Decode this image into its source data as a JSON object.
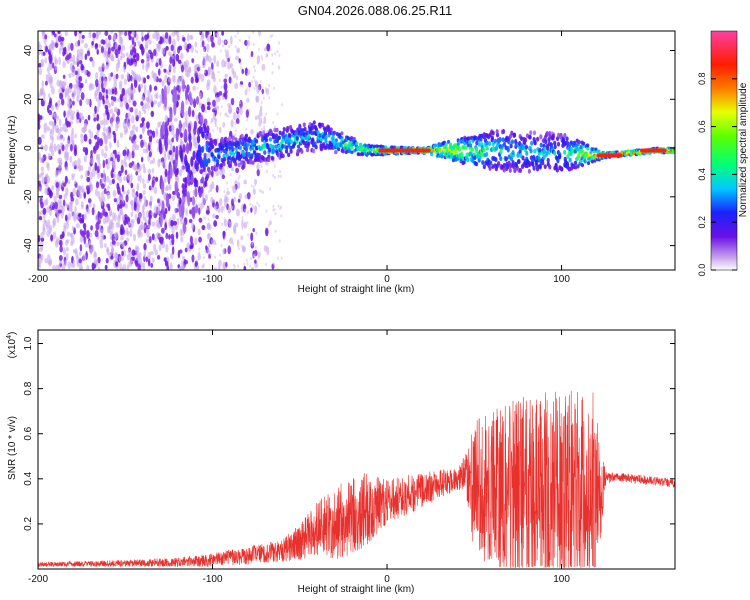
{
  "title": "GN04.2026.088.06.25.R11",
  "colors": {
    "snr_line": "#e8302c",
    "frame": "#000000",
    "spectro_low": "#c9a6ec",
    "spectro_mid": "#6a11e6",
    "spectro_high": "#00e8ff",
    "spectro_peak": "#ff1d00"
  },
  "chart_data": [
    {
      "type": "heatmap",
      "title": "GN04.2026.088.06.25.R11",
      "xlabel": "Height of straight line (km)",
      "ylabel": "Frequency (Hz)",
      "xlim": [
        -200,
        165
      ],
      "ylim": [
        -50,
        48
      ],
      "x_ticks": [
        -200,
        -100,
        0,
        100
      ],
      "y_ticks": [
        -40,
        -20,
        0,
        20,
        40
      ],
      "colorbar": {
        "label": "Normalized spectral amplitude",
        "range": [
          0,
          1
        ],
        "ticks": [
          "0.0",
          "0.2",
          "0.4",
          "0.6",
          "0.8"
        ],
        "colormap": "rainbow (purple-blue-cyan-green-yellow-red-magenta)"
      },
      "description_points": [
        {
          "x": -200,
          "y_center": -5,
          "spread": 48,
          "amplitude": 0.15
        },
        {
          "x": -120,
          "y_center": -2,
          "spread": 48,
          "amplitude": 0.12
        },
        {
          "x": -100,
          "y_center": -3,
          "spread": 6,
          "amplitude": 0.35
        },
        {
          "x": -60,
          "y_center": 2,
          "spread": 6,
          "amplitude": 0.4
        },
        {
          "x": -40,
          "y_center": 5,
          "spread": 6,
          "amplitude": 0.35
        },
        {
          "x": -10,
          "y_center": -1,
          "spread": 2,
          "amplitude": 0.6
        },
        {
          "x": 20,
          "y_center": -1,
          "spread": 1,
          "amplitude": 0.9
        },
        {
          "x": 60,
          "y_center": -1,
          "spread": 8,
          "amplitude": 0.4
        },
        {
          "x": 100,
          "y_center": -2,
          "spread": 8,
          "amplitude": 0.35
        },
        {
          "x": 125,
          "y_center": -3,
          "spread": 1,
          "amplitude": 0.9
        },
        {
          "x": 155,
          "y_center": -1,
          "spread": 1,
          "amplitude": 0.9
        }
      ]
    },
    {
      "type": "line",
      "xlabel": "Height of straight line (km)",
      "ylabel": "SNR (10 * v/v)",
      "y_multiplier": "(x10^4)",
      "xlim": [
        -200,
        165
      ],
      "ylim": [
        0,
        1.06
      ],
      "x_ticks": [
        -200,
        -100,
        0,
        100
      ],
      "y_ticks": [
        0.2,
        0.4,
        0.6,
        0.8,
        1.0
      ],
      "series": [
        {
          "name": "SNR",
          "envelope_x": [
            -200,
            -150,
            -120,
            -100,
            -80,
            -60,
            -50,
            -40,
            -30,
            -20,
            -10,
            0,
            20,
            40,
            45,
            50,
            70,
            90,
            110,
            120,
            125,
            130,
            165
          ],
          "baseline": [
            0.02,
            0.025,
            0.03,
            0.04,
            0.06,
            0.08,
            0.12,
            0.18,
            0.2,
            0.24,
            0.27,
            0.3,
            0.35,
            0.4,
            0.43,
            0.36,
            0.35,
            0.34,
            0.34,
            0.34,
            0.4,
            0.41,
            0.38
          ],
          "fluct": [
            0.01,
            0.015,
            0.02,
            0.03,
            0.04,
            0.05,
            0.08,
            0.12,
            0.16,
            0.18,
            0.16,
            0.1,
            0.08,
            0.05,
            0.08,
            0.3,
            0.4,
            0.45,
            0.45,
            0.45,
            0.03,
            0.02,
            0.02
          ]
        }
      ]
    }
  ],
  "labels": {
    "x_tick_texts": [
      "-200",
      "-100",
      "0",
      "100"
    ],
    "y1_tick_texts": [
      "-40",
      "-20",
      "0",
      "20",
      "40"
    ],
    "y2_tick_texts": [
      "0.2",
      "0.4",
      "0.6",
      "0.8",
      "1.0"
    ],
    "cb_tick_texts": [
      "0.0",
      "0.2",
      "0.4",
      "0.6",
      "0.8"
    ],
    "multiplier_base": "(x10",
    "multiplier_exp": "4",
    "multiplier_close": ")"
  }
}
